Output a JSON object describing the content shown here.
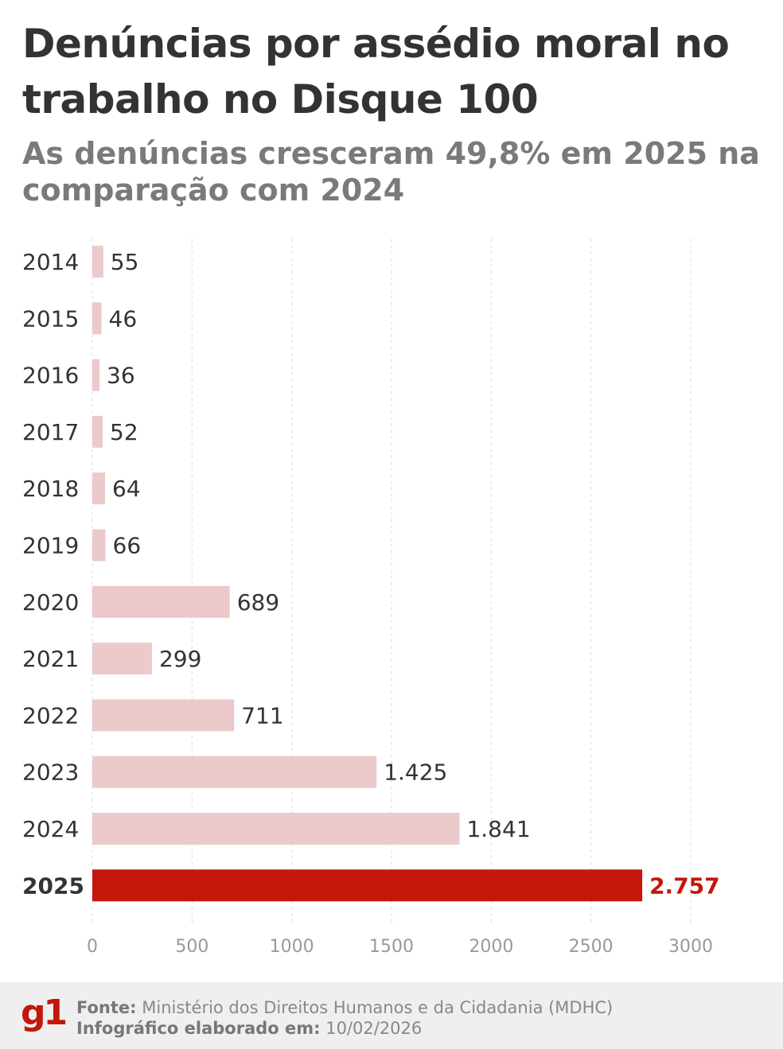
{
  "title": "Denúncias por assédio moral no trabalho no Disque 100",
  "subtitle": "As denúncias cresceram 49,8% em 2025 na comparação com 2024",
  "chart_data": {
    "type": "bar",
    "orientation": "horizontal",
    "categories": [
      "2014",
      "2015",
      "2016",
      "2017",
      "2018",
      "2019",
      "2020",
      "2021",
      "2022",
      "2023",
      "2024",
      "2025"
    ],
    "values": [
      55,
      46,
      36,
      52,
      64,
      66,
      689,
      299,
      711,
      1425,
      1841,
      2757
    ],
    "data_labels": [
      "55",
      "46",
      "36",
      "52",
      "64",
      "66",
      "689",
      "299",
      "711",
      "1.425",
      "1.841",
      "2.757"
    ],
    "highlight": "2025",
    "xlim": [
      0,
      3000
    ],
    "xticks": [
      "0",
      "500",
      "1000",
      "1500",
      "2000",
      "2500",
      "3000"
    ],
    "xtick_values": [
      0,
      500,
      1000,
      1500,
      2000,
      2500,
      3000
    ],
    "grid": "vertical dashed",
    "colors": {
      "bar": "#ecc9ca",
      "highlight": "#c4170c",
      "label": "#333333",
      "tick": "#999999"
    }
  },
  "footer": {
    "logo": "g1",
    "source_label": "Fonte:",
    "source": "Ministério dos Direitos Humanos e da Cidadania (MDHC)",
    "date_label": "Infográfico elaborado em:",
    "date": "10/02/2026"
  }
}
